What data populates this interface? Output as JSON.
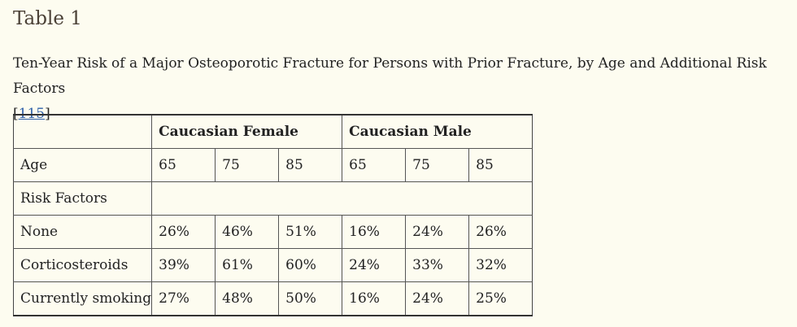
{
  "title": "Table 1",
  "caption": {
    "text": "Ten-Year Risk of a Major Osteoporotic Fracture for Persons with Prior Fracture, by Age and Additional Risk Factors",
    "ref_open": "[",
    "ref_link": "115",
    "ref_close": "]"
  },
  "table": {
    "groups": [
      "Caucasian Female",
      "Caucasian Male"
    ],
    "age_label": "Age",
    "ages": [
      "65",
      "75",
      "85",
      "65",
      "75",
      "85"
    ],
    "risk_factors_label": "Risk Factors",
    "rows": [
      {
        "label": "None",
        "values": [
          "26%",
          "46%",
          "51%",
          "16%",
          "24%",
          "26%"
        ]
      },
      {
        "label": "Corticosteroids",
        "values": [
          "39%",
          "61%",
          "60%",
          "24%",
          "33%",
          "32%"
        ]
      },
      {
        "label": "Currently smoking",
        "values": [
          "27%",
          "48%",
          "50%",
          "16%",
          "24%",
          "25%"
        ]
      }
    ]
  }
}
